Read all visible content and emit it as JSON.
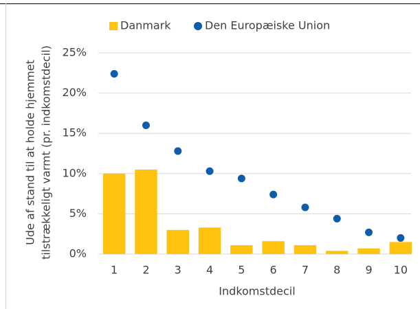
{
  "chart_data": {
    "type": "bar_dot",
    "ylabel": [
      "Ude af stand til at holde hjemmet",
      "tilstrækkeligt varmt (pr. indkomstdecil)"
    ],
    "xlabel": "Indkomstdecil",
    "categories": [
      "1",
      "2",
      "3",
      "4",
      "5",
      "6",
      "7",
      "8",
      "9",
      "10"
    ],
    "series": [
      {
        "name": "Danmark",
        "color": "#ffc20e",
        "kind": "bar",
        "values": [
          10.0,
          10.5,
          3.0,
          3.3,
          1.1,
          1.6,
          1.1,
          0.4,
          0.7,
          1.5
        ]
      },
      {
        "name": "Den Europæiske Union",
        "color": "#0e5dab",
        "kind": "dot",
        "values": [
          22.4,
          16.0,
          12.8,
          10.3,
          9.4,
          7.4,
          5.8,
          4.4,
          2.7,
          2.0
        ]
      }
    ],
    "ylim": [
      0,
      25
    ],
    "yticks": [
      {
        "value": 0,
        "label": "0%"
      },
      {
        "value": 5,
        "label": "5%"
      },
      {
        "value": 10,
        "label": "10%"
      },
      {
        "value": 15,
        "label": "15%"
      },
      {
        "value": 20,
        "label": "20%"
      },
      {
        "value": 25,
        "label": "25%"
      }
    ],
    "grid": true
  }
}
